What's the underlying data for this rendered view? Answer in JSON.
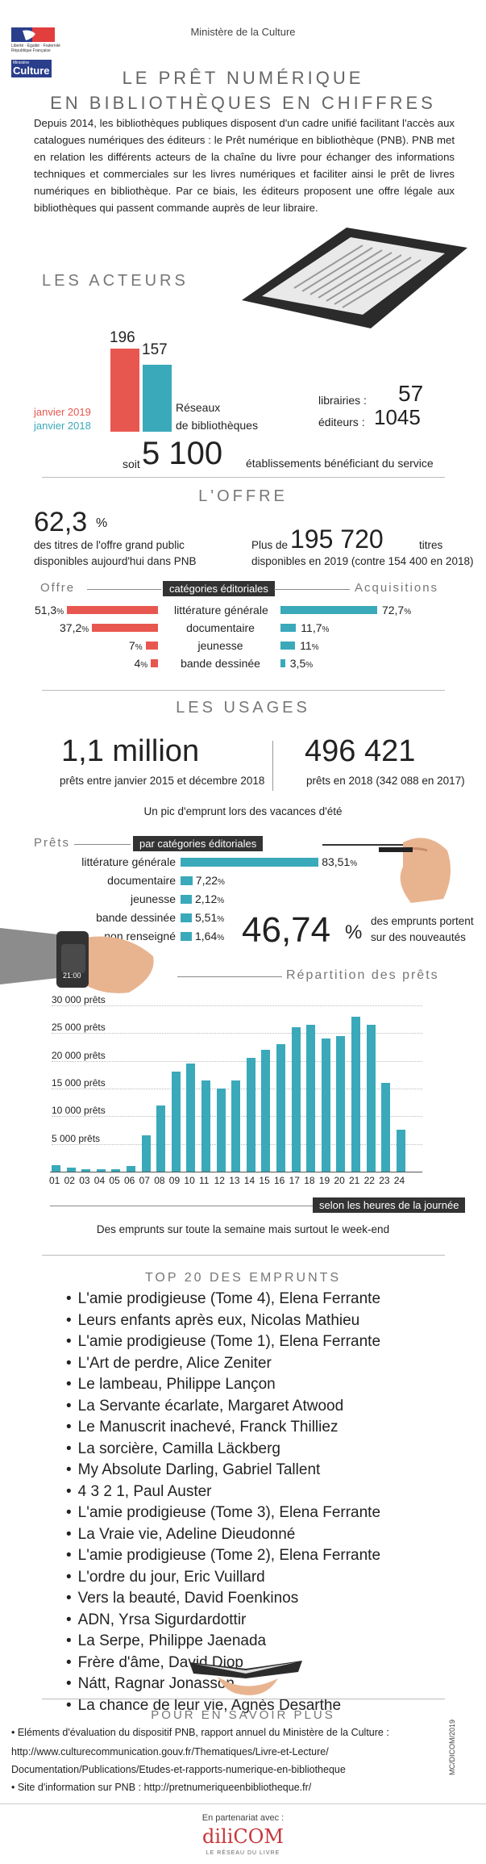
{
  "header": {
    "ministry": "Ministère de la Culture",
    "logo_text_1": "Liberté · Égalité · Fraternité",
    "logo_text_2": "République Française",
    "logo_culture": "Culture",
    "logo_ministere": "Ministère"
  },
  "title_line1": "LE PRÊT NUMÉRIQUE",
  "title_line2": "EN BIBLIOTHÈQUES EN CHIFFRES",
  "intro": "Depuis 2014, les bibliothèques publiques disposent d'un cadre unifié facilitant l'accès aux catalogues numériques des éditeurs : le Prêt numérique en bibliothèque (PNB). PNB met en relation les différents acteurs de la chaîne du livre pour échanger des informations techniques et commerciales sur les livres numériques et faciliter ainsi le prêt de livres numériques en bibliothèque. Par ce biais, les éditeurs proposent une offre légale aux bibliothèques qui passent commande auprès de leur libraire.",
  "acteurs": {
    "title": "LES ACTEURS",
    "val_2019": "196",
    "val_2018": "157",
    "legend_2019": "janvier 2019",
    "legend_2018": "janvier 2018",
    "reseaux_label": "Réseaux\nde bibliothèques",
    "librairies_label": "librairies :",
    "librairies_value": "57",
    "editeurs_label": "éditeurs :",
    "editeurs_value": "1045",
    "soit": "soit",
    "etab_value": "5 100",
    "etab_label": "établissements bénéficiant du service",
    "colors": {
      "2019": "#e8574f",
      "2018": "#3aa9ba"
    }
  },
  "offre": {
    "title": "L'OFFRE",
    "pct_value": "62,3",
    "pct_sign": "%",
    "pct_desc_1": "des titres de l'offre grand public",
    "pct_desc_2": "disponibles aujourd'hui dans PNB",
    "plus_de": "Plus de",
    "titles_value": "195 720",
    "titres": "titres",
    "titles_desc": "disponibles en 2019 (contre 154 400 en 2018)",
    "left_header": "Offre",
    "center_header": "catégories éditoriales",
    "right_header": "Acquisitions",
    "rows": [
      {
        "label": "littérature générale",
        "offre": "51,3",
        "acq": "72,7"
      },
      {
        "label": "documentaire",
        "offre": "37,2",
        "acq": "11,7"
      },
      {
        "label": "jeunesse",
        "offre": "7",
        "acq": "11"
      },
      {
        "label": "bande dessinée",
        "offre": "4",
        "acq": "3,5"
      }
    ],
    "pct": "%"
  },
  "usages": {
    "title": "LES USAGES",
    "prets_value": "1,1 million",
    "prets_desc": "prêts entre janvier 2015 et décembre 2018",
    "prets2018_value": "496 421",
    "prets2018_desc": "prêts en 2018 (342 088 en 2017)",
    "vacances": "Un pic d'emprunt lors des vacances d'été",
    "prets_header": "Prêts",
    "cat_header": "par catégories éditoriales",
    "rows": [
      {
        "label": "littérature générale",
        "value": "83,51"
      },
      {
        "label": "documentaire",
        "value": "7,22"
      },
      {
        "label": "jeunesse",
        "value": "2,12"
      },
      {
        "label": "bande dessinée",
        "value": "5,51"
      },
      {
        "label": "non renseigné",
        "value": "1,64"
      }
    ],
    "pct": "%",
    "nouveautes_value": "46,74",
    "nouveautes_pct": "%",
    "nouveautes_desc_1": "des emprunts portent",
    "nouveautes_desc_2": "sur des nouveautés",
    "watch_time": "21:00"
  },
  "chart_data": {
    "type": "bar",
    "title": "Répartition des prêts",
    "xlabel": "selon les heures de la journée",
    "ylabel": "",
    "categories": [
      "01",
      "02",
      "03",
      "04",
      "05",
      "06",
      "07",
      "08",
      "09",
      "10",
      "11",
      "12",
      "13",
      "14",
      "15",
      "16",
      "17",
      "18",
      "19",
      "20",
      "21",
      "22",
      "23",
      "24"
    ],
    "values": [
      1200,
      700,
      500,
      400,
      500,
      1000,
      6500,
      12000,
      18000,
      19500,
      16500,
      15000,
      16500,
      20500,
      22000,
      23000,
      26000,
      26500,
      24000,
      24500,
      28000,
      26500,
      16000,
      7500
    ],
    "y_ticks": [
      "5 000 prêts",
      "10 000 prêts",
      "15 000 prêts",
      "20 000 prêts",
      "25 000 prêts",
      "30 000 prêts"
    ],
    "y_tick_values": [
      5000,
      10000,
      15000,
      20000,
      25000,
      30000
    ],
    "ylim": [
      0,
      32000
    ],
    "color": "#3aa9ba",
    "caption": "Des emprunts sur toute la semaine mais surtout le week-end"
  },
  "top20": {
    "title": "TOP 20 DES EMPRUNTS",
    "items": [
      "L'amie prodigieuse (Tome 4), Elena Ferrante",
      "Leurs enfants après eux, Nicolas Mathieu",
      "L'amie prodigieuse (Tome 1), Elena Ferrante",
      "L'Art de perdre, Alice Zeniter",
      "Le lambeau, Philippe Lançon",
      "La Servante écarlate, Margaret Atwood",
      "Le Manuscrit inachevé, Franck Thilliez",
      "La sorcière, Camilla Läckberg",
      "My Absolute Darling, Gabriel Tallent",
      "4 3 2 1, Paul Auster",
      "L'amie prodigieuse (Tome 3), Elena Ferrante",
      "La Vraie vie, Adeline Dieudonné",
      "L'amie prodigieuse (Tome 2), Elena Ferrante",
      "L'ordre du jour, Eric Vuillard",
      "Vers la beauté, David Foenkinos",
      "ADN, Yrsa Sigurdardottir",
      "La Serpe, Philippe Jaenada",
      "Frère d'âme, David Diop",
      "Nátt, Ragnar Jonasson",
      "La chance de leur vie, Agnès Desarthe"
    ]
  },
  "savoir": {
    "title": "POUR EN SAVOIR PLUS",
    "line1": "• Eléments d'évaluation du dispositif PNB, rapport annuel du Ministère de la Culture :",
    "line2": "http://www.culturecommunication.gouv.fr/Thematiques/Livre-et-Lecture/",
    "line3": "Documentation/Publications/Etudes-et-rapports-numerique-en-bibliotheque",
    "line4": "• Site d'information sur PNB : http://pretnumeriqueenbibliotheque.fr/",
    "credit": "MC/DICOM/2019"
  },
  "footer": {
    "partner": "En partenariat avec :",
    "logo": "diliCOM",
    "logo_sub": "LE RÉSEAU DU LIVRE"
  }
}
